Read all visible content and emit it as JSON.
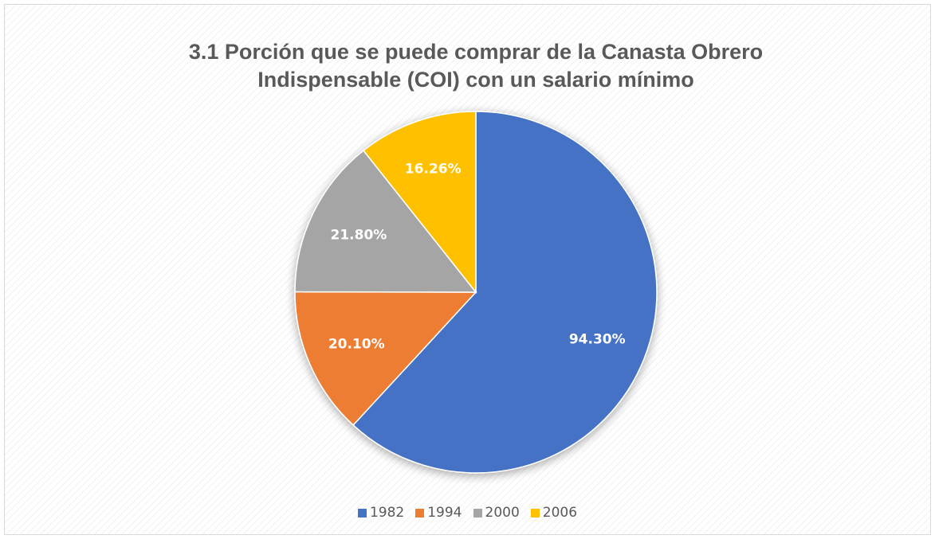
{
  "chart_data": {
    "type": "pie",
    "title": "3.1 Porción que se puede comprar de la Canasta Obrero Indispensable (COI) con un salario mínimo",
    "categories": [
      "1982",
      "1994",
      "2000",
      "2006"
    ],
    "values": [
      94.3,
      20.1,
      21.8,
      16.26
    ],
    "value_labels": [
      "94.30%",
      "20.10%",
      "21.80%",
      "16.26%"
    ],
    "colors": [
      "#4472c4",
      "#ed7d31",
      "#a5a5a5",
      "#ffc000"
    ],
    "legend": "bottom"
  }
}
